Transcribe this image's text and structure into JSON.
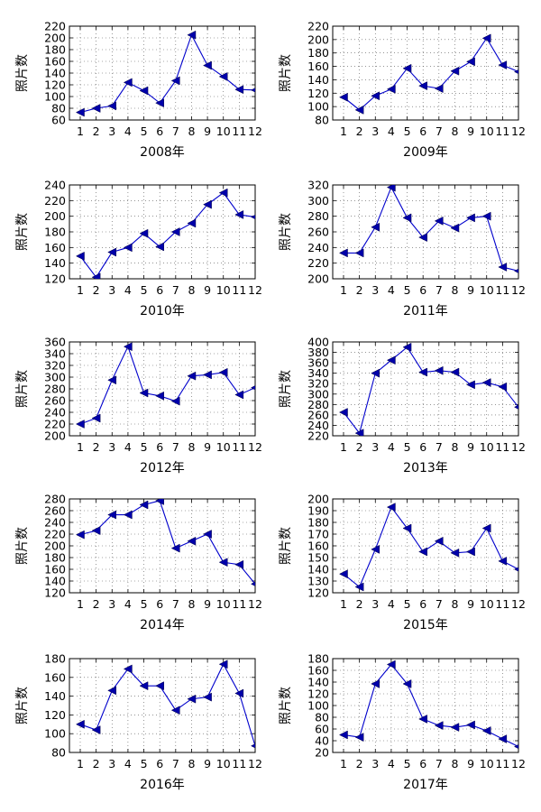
{
  "figure": {
    "background": "#ffffff",
    "series_color": "#0000cc",
    "marker_color": "#0000aa"
  },
  "chart_data": [
    {
      "type": "line",
      "xlabel": "2008年",
      "ylabel": "照片数",
      "x": [
        1,
        2,
        3,
        4,
        5,
        6,
        7,
        8,
        9,
        10,
        11,
        12
      ],
      "values": [
        73,
        80,
        84,
        124,
        110,
        89,
        127,
        205,
        153,
        134,
        112,
        111
      ],
      "ylim": [
        60,
        220
      ],
      "yticks": [
        60,
        80,
        100,
        120,
        140,
        160,
        180,
        200,
        220
      ],
      "grid": true
    },
    {
      "type": "line",
      "xlabel": "2009年",
      "ylabel": "照片数",
      "x": [
        1,
        2,
        3,
        4,
        5,
        6,
        7,
        8,
        9,
        10,
        11,
        12
      ],
      "values": [
        114,
        95,
        116,
        126,
        157,
        131,
        127,
        153,
        167,
        202,
        162,
        152
      ],
      "ylim": [
        80,
        220
      ],
      "yticks": [
        80,
        100,
        120,
        140,
        160,
        180,
        200,
        220
      ],
      "grid": true
    },
    {
      "type": "line",
      "xlabel": "2010年",
      "ylabel": "照片数",
      "x": [
        1,
        2,
        3,
        4,
        5,
        6,
        7,
        8,
        9,
        10,
        11,
        12
      ],
      "values": [
        149,
        122,
        154,
        160,
        178,
        161,
        180,
        191,
        215,
        230,
        202,
        199
      ],
      "ylim": [
        120,
        240
      ],
      "yticks": [
        120,
        140,
        160,
        180,
        200,
        220,
        240
      ],
      "grid": true
    },
    {
      "type": "line",
      "xlabel": "2011年",
      "ylabel": "照片数",
      "x": [
        1,
        2,
        3,
        4,
        5,
        6,
        7,
        8,
        9,
        10,
        11,
        12
      ],
      "values": [
        233,
        233,
        266,
        317,
        278,
        253,
        274,
        265,
        278,
        280,
        215,
        210
      ],
      "ylim": [
        200,
        320
      ],
      "yticks": [
        200,
        220,
        240,
        260,
        280,
        300,
        320
      ],
      "grid": true
    },
    {
      "type": "line",
      "xlabel": "2012年",
      "ylabel": "照片数",
      "x": [
        1,
        2,
        3,
        4,
        5,
        6,
        7,
        8,
        9,
        10,
        11,
        12
      ],
      "values": [
        220,
        230,
        295,
        352,
        273,
        268,
        259,
        302,
        304,
        308,
        270,
        282
      ],
      "ylim": [
        200,
        360
      ],
      "yticks": [
        200,
        220,
        240,
        260,
        280,
        300,
        320,
        340,
        360
      ],
      "grid": true
    },
    {
      "type": "line",
      "xlabel": "2013年",
      "ylabel": "照片数",
      "x": [
        1,
        2,
        3,
        4,
        5,
        6,
        7,
        8,
        9,
        10,
        11,
        12
      ],
      "values": [
        265,
        225,
        340,
        365,
        390,
        342,
        345,
        342,
        318,
        322,
        314,
        275
      ],
      "ylim": [
        220,
        400
      ],
      "yticks": [
        220,
        240,
        260,
        280,
        300,
        320,
        340,
        360,
        380,
        400
      ],
      "grid": true
    },
    {
      "type": "line",
      "xlabel": "2014年",
      "ylabel": "照片数",
      "x": [
        1,
        2,
        3,
        4,
        5,
        6,
        7,
        8,
        9,
        10,
        11,
        12
      ],
      "values": [
        219,
        226,
        253,
        253,
        270,
        277,
        196,
        208,
        220,
        172,
        168,
        135
      ],
      "ylim": [
        120,
        280
      ],
      "yticks": [
        120,
        140,
        160,
        180,
        200,
        220,
        240,
        260,
        280
      ],
      "grid": true
    },
    {
      "type": "line",
      "xlabel": "2015年",
      "ylabel": "照片数",
      "x": [
        1,
        2,
        3,
        4,
        5,
        6,
        7,
        8,
        9,
        10,
        11,
        12
      ],
      "values": [
        136,
        125,
        157,
        193,
        175,
        155,
        164,
        154,
        155,
        175,
        147,
        140
      ],
      "ylim": [
        120,
        200
      ],
      "yticks": [
        120,
        130,
        140,
        150,
        160,
        170,
        180,
        190,
        200
      ],
      "grid": true
    },
    {
      "type": "line",
      "xlabel": "2016年",
      "ylabel": "照片数",
      "x": [
        1,
        2,
        3,
        4,
        5,
        6,
        7,
        8,
        9,
        10,
        11,
        12
      ],
      "values": [
        110,
        104,
        146,
        169,
        151,
        151,
        125,
        137,
        139,
        174,
        143,
        87
      ],
      "ylim": [
        80,
        180
      ],
      "yticks": [
        80,
        100,
        120,
        140,
        160,
        180
      ],
      "grid": true
    },
    {
      "type": "line",
      "xlabel": "2017年",
      "ylabel": "照片数",
      "x": [
        1,
        2,
        3,
        4,
        5,
        6,
        7,
        8,
        9,
        10,
        11,
        12
      ],
      "values": [
        50,
        46,
        137,
        170,
        137,
        77,
        66,
        63,
        67,
        57,
        43,
        30
      ],
      "ylim": [
        20,
        180
      ],
      "yticks": [
        20,
        40,
        60,
        80,
        100,
        120,
        140,
        160,
        180
      ],
      "grid": true
    }
  ]
}
